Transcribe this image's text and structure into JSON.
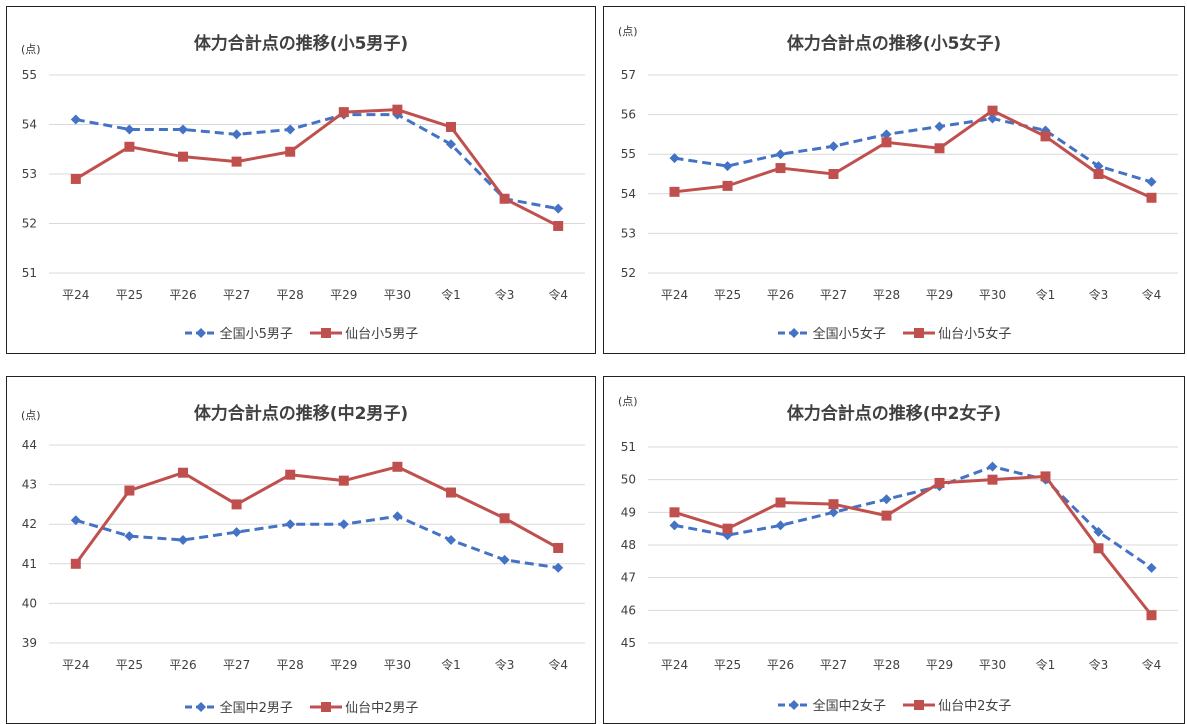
{
  "chart_data": [
    {
      "type": "line",
      "title": "体力合計点の推移(小5男子)",
      "ylabel": "(点)",
      "categories": [
        "平24",
        "平25",
        "平26",
        "平27",
        "平28",
        "平29",
        "平30",
        "令1",
        "令3",
        "令4"
      ],
      "ylim": [
        51,
        55
      ],
      "yticks": [
        51,
        52,
        53,
        54,
        55
      ],
      "grid": true,
      "legend_position": "bottom",
      "series": [
        {
          "name": "全国小5男子",
          "color": "#4472C4",
          "style": "dashed",
          "marker": "diamond",
          "values": [
            54.1,
            53.9,
            53.9,
            53.8,
            53.9,
            54.2,
            54.2,
            53.6,
            52.5,
            52.3
          ]
        },
        {
          "name": "仙台小5男子",
          "color": "#C0504D",
          "style": "solid",
          "marker": "square",
          "values": [
            52.9,
            53.55,
            53.35,
            53.25,
            53.45,
            54.25,
            54.3,
            53.95,
            52.5,
            51.95
          ]
        }
      ]
    },
    {
      "type": "line",
      "title": "体力合計点の推移(小5女子)",
      "ylabel": "(点)",
      "categories": [
        "平24",
        "平25",
        "平26",
        "平27",
        "平28",
        "平29",
        "平30",
        "令1",
        "令3",
        "令4"
      ],
      "ylim": [
        52,
        57
      ],
      "yticks": [
        52,
        53,
        54,
        55,
        56,
        57
      ],
      "grid": true,
      "legend_position": "bottom",
      "series": [
        {
          "name": "全国小5女子",
          "color": "#4472C4",
          "style": "dashed",
          "marker": "diamond",
          "values": [
            54.9,
            54.7,
            55.0,
            55.2,
            55.5,
            55.7,
            55.9,
            55.6,
            54.7,
            54.3
          ]
        },
        {
          "name": "仙台小5女子",
          "color": "#C0504D",
          "style": "solid",
          "marker": "square",
          "values": [
            54.05,
            54.2,
            54.65,
            54.5,
            55.3,
            55.15,
            56.1,
            55.45,
            54.5,
            53.9
          ]
        }
      ]
    },
    {
      "type": "line",
      "title": "体力合計点の推移(中2男子)",
      "ylabel": "(点)",
      "categories": [
        "平24",
        "平25",
        "平26",
        "平27",
        "平28",
        "平29",
        "平30",
        "令1",
        "令3",
        "令4"
      ],
      "ylim": [
        39,
        44
      ],
      "yticks": [
        39,
        40,
        41,
        42,
        43,
        44
      ],
      "grid": true,
      "legend_position": "bottom",
      "series": [
        {
          "name": "全国中2男子",
          "color": "#4472C4",
          "style": "dashed",
          "marker": "diamond",
          "values": [
            42.1,
            41.7,
            41.6,
            41.8,
            42.0,
            42.0,
            42.2,
            41.6,
            41.1,
            40.9
          ]
        },
        {
          "name": "仙台中2男子",
          "color": "#C0504D",
          "style": "solid",
          "marker": "square",
          "values": [
            41.0,
            42.85,
            43.3,
            42.5,
            43.25,
            43.1,
            43.45,
            42.8,
            42.15,
            41.4
          ]
        }
      ]
    },
    {
      "type": "line",
      "title": "体力合計点の推移(中2女子)",
      "ylabel": "(点)",
      "categories": [
        "平24",
        "平25",
        "平26",
        "平27",
        "平28",
        "平29",
        "平30",
        "令1",
        "令3",
        "令4"
      ],
      "ylim": [
        45,
        51
      ],
      "yticks": [
        45,
        46,
        47,
        48,
        49,
        50,
        51
      ],
      "grid": true,
      "legend_position": "bottom",
      "series": [
        {
          "name": "全国中2女子",
          "color": "#4472C4",
          "style": "dashed",
          "marker": "diamond",
          "values": [
            48.6,
            48.3,
            48.6,
            49.0,
            49.4,
            49.8,
            50.4,
            50.0,
            48.4,
            47.3
          ]
        },
        {
          "name": "仙台中2女子",
          "color": "#C0504D",
          "style": "solid",
          "marker": "square",
          "values": [
            49.0,
            48.5,
            49.3,
            49.25,
            48.9,
            49.9,
            50.0,
            50.1,
            47.9,
            45.85
          ]
        }
      ]
    }
  ]
}
